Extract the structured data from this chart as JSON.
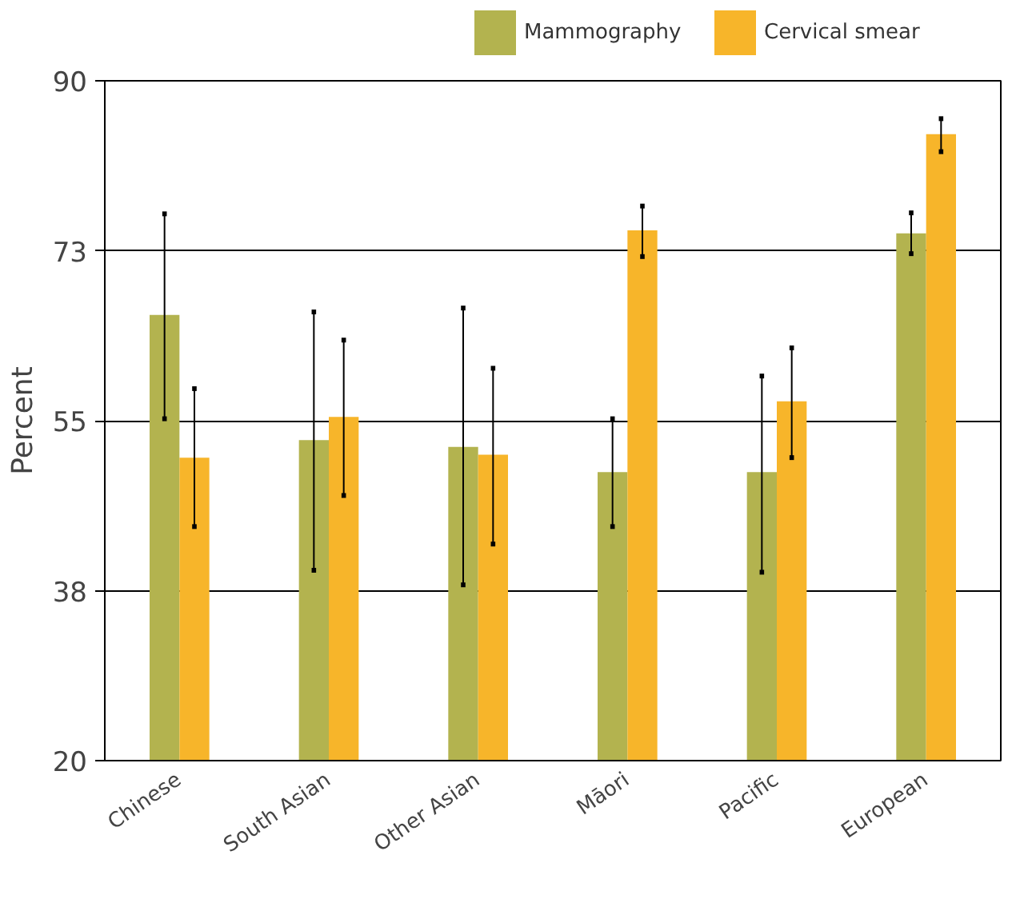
{
  "chart_data": {
    "type": "bar",
    "ylabel": "Percent",
    "categories": [
      "Chinese",
      "South Asian",
      "Other Asian",
      "Māori",
      "Pacific",
      "European"
    ],
    "series": [
      {
        "name": "Mammography",
        "color": "#b3b34f",
        "values": [
          65.9,
          53.0,
          52.3,
          49.7,
          49.7,
          74.3
        ],
        "errors": [
          [
            55.2,
            76.3
          ],
          [
            39.6,
            66.2
          ],
          [
            38.1,
            66.6
          ],
          [
            44.1,
            55.2
          ],
          [
            39.4,
            59.6
          ],
          [
            72.2,
            76.4
          ]
        ]
      },
      {
        "name": "Cervical smear",
        "color": "#f7b52a",
        "values": [
          51.2,
          55.4,
          51.5,
          74.6,
          57.0,
          84.5
        ],
        "errors": [
          [
            44.1,
            58.3
          ],
          [
            47.3,
            63.3
          ],
          [
            42.3,
            60.4
          ],
          [
            71.9,
            77.1
          ],
          [
            51.2,
            62.5
          ],
          [
            82.7,
            86.1
          ]
        ]
      }
    ],
    "ylim": [
      20,
      90
    ],
    "yticks": [
      20,
      {
        "value": 37.5,
        "label": "38"
      },
      55,
      {
        "value": 72.5,
        "label": "73"
      },
      90
    ],
    "grid": "y",
    "legend": "top right"
  }
}
